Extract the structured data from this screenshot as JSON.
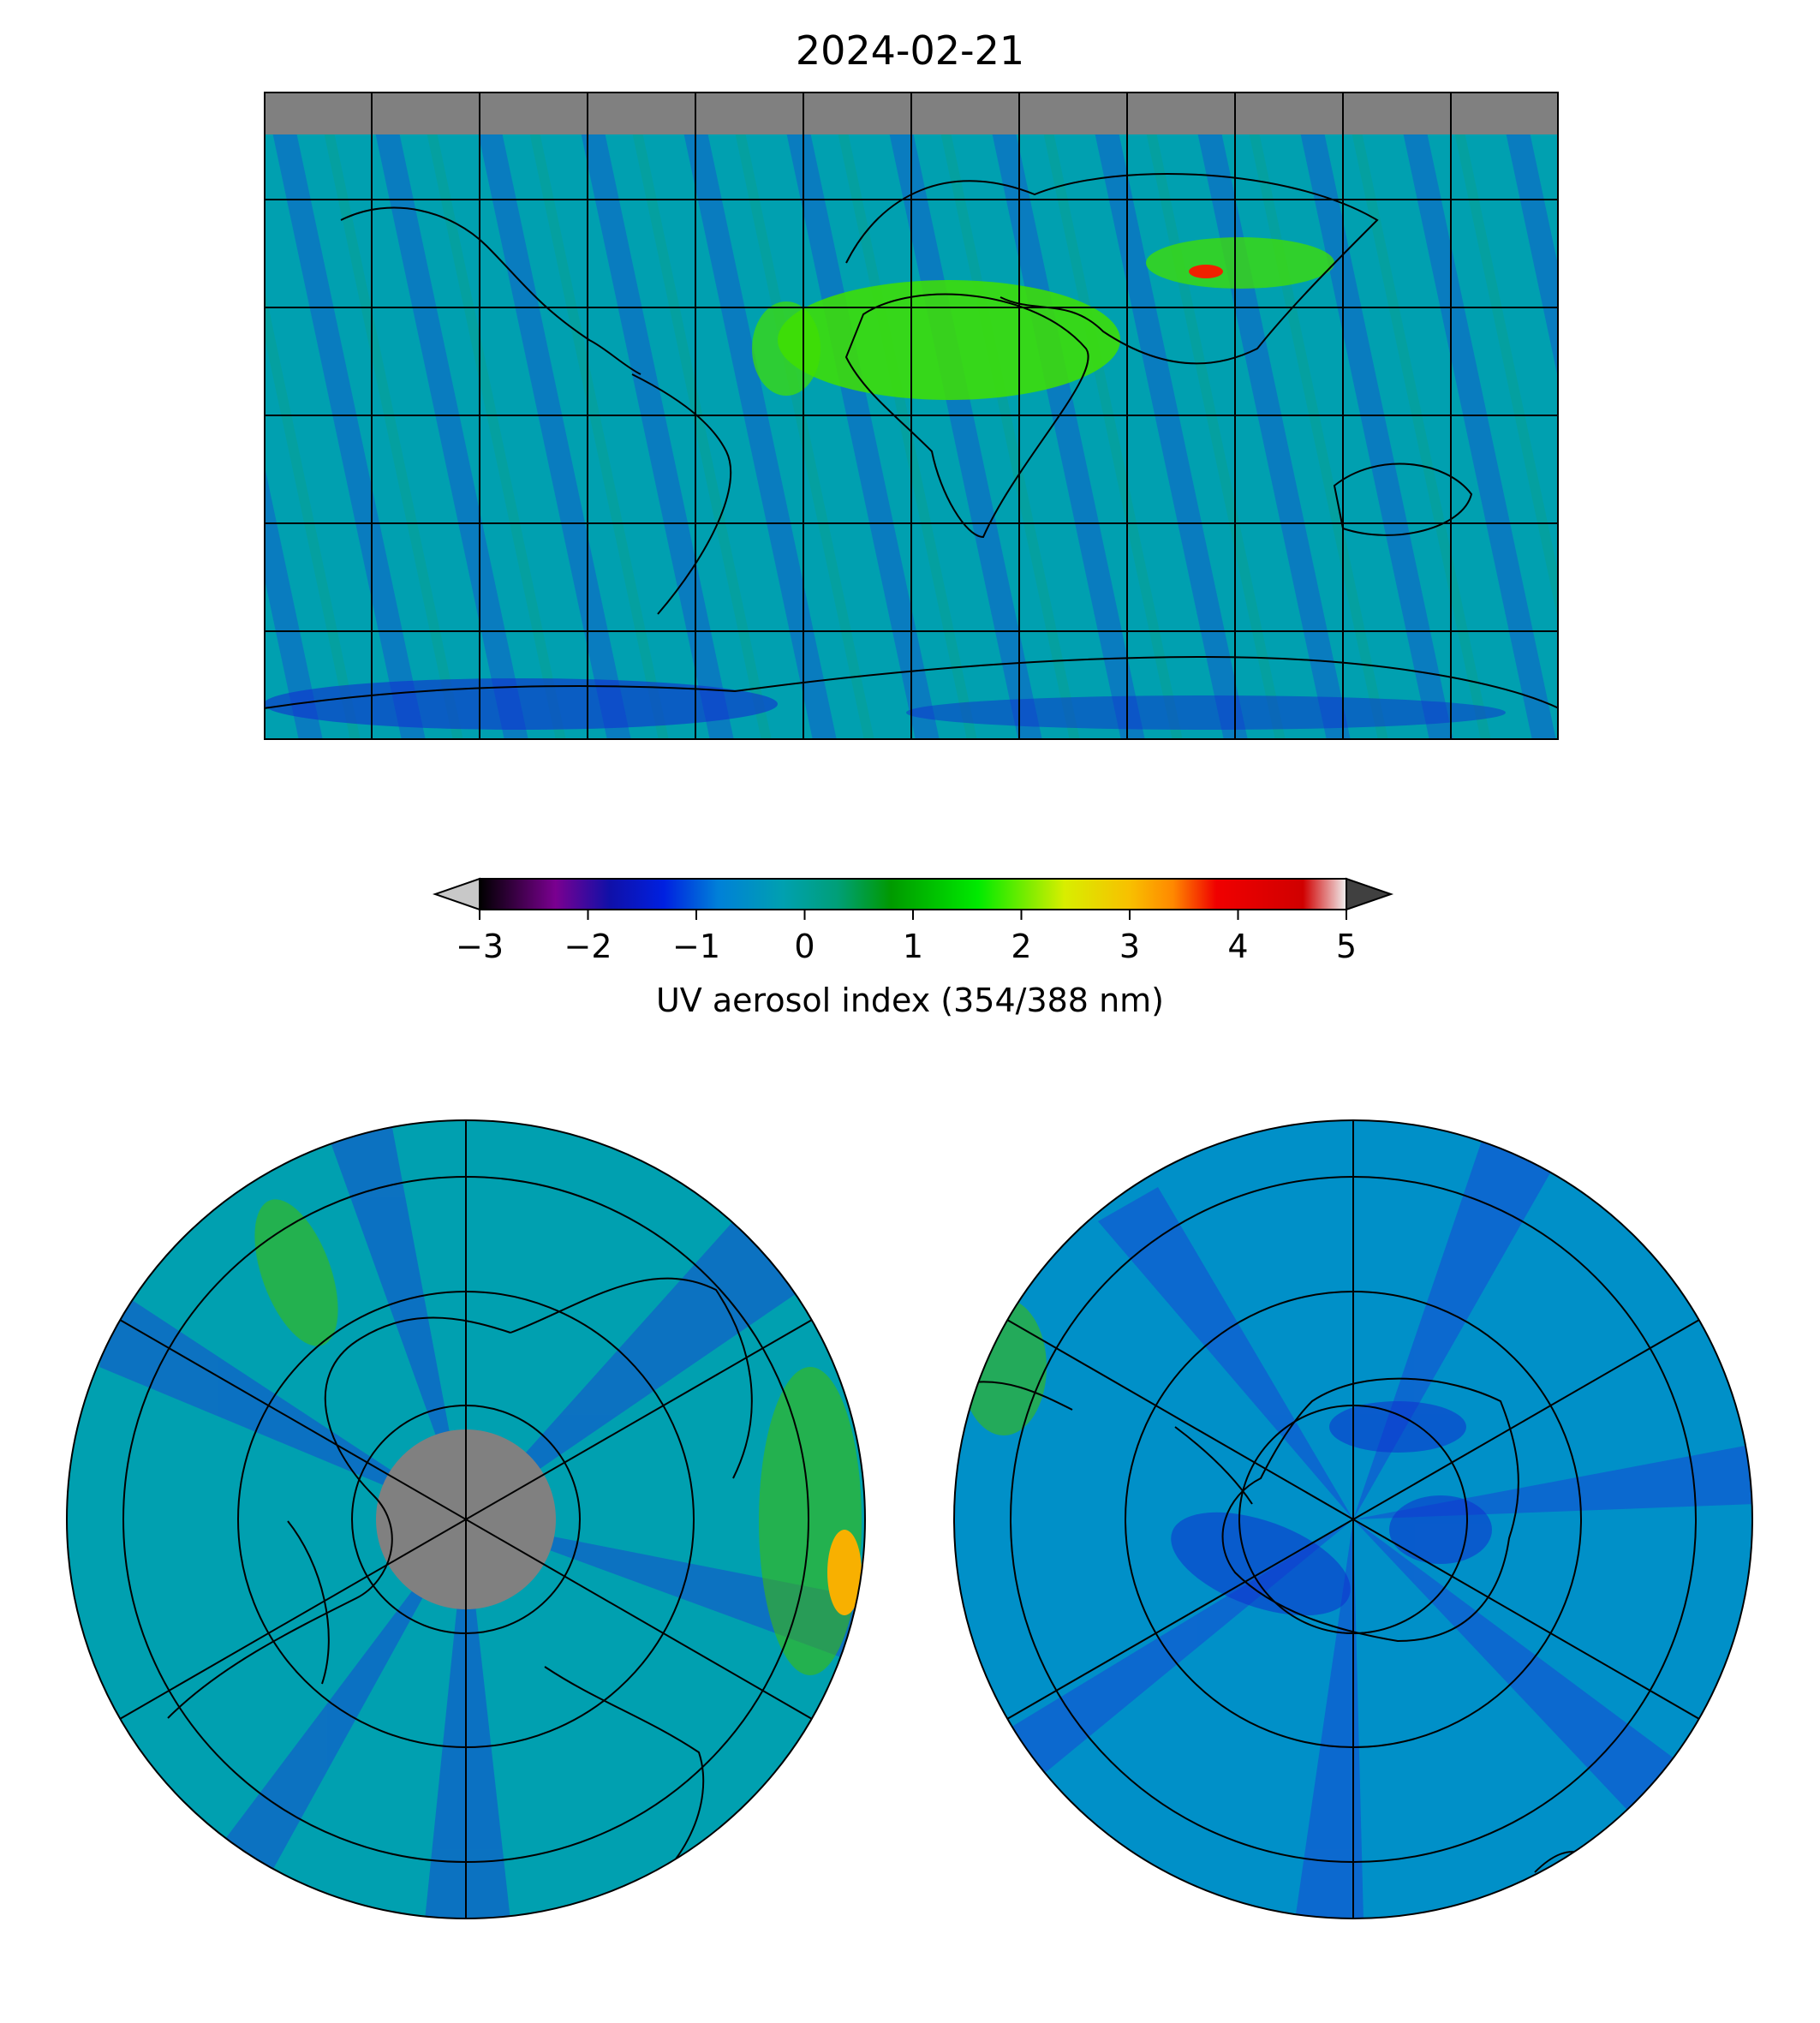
{
  "title": "2024-02-21",
  "colorbar": {
    "label": "UV aerosol index (354/388 nm)",
    "min": -3,
    "max": 5,
    "ticks": [
      "−3",
      "−2",
      "−1",
      "0",
      "1",
      "2",
      "3",
      "4",
      "5"
    ],
    "extend": "both",
    "under_color": "#c8c8c8",
    "over_color": "#404040",
    "stops": [
      {
        "v": -3.0,
        "c": "#000000"
      },
      {
        "v": -2.3,
        "c": "#7a0090"
      },
      {
        "v": -1.8,
        "c": "#1010a8"
      },
      {
        "v": -1.3,
        "c": "#0020e0"
      },
      {
        "v": -0.8,
        "c": "#0080d8"
      },
      {
        "v": -0.2,
        "c": "#00a0b0"
      },
      {
        "v": 0.3,
        "c": "#009f78"
      },
      {
        "v": 0.8,
        "c": "#009a00"
      },
      {
        "v": 1.6,
        "c": "#00ea00"
      },
      {
        "v": 2.4,
        "c": "#d8ee00"
      },
      {
        "v": 3.0,
        "c": "#f8c000"
      },
      {
        "v": 3.4,
        "c": "#ff8800"
      },
      {
        "v": 3.8,
        "c": "#f00000"
      },
      {
        "v": 4.6,
        "c": "#d00000"
      },
      {
        "v": 5.0,
        "c": "#f0f0f0"
      }
    ]
  },
  "maps": {
    "world": {
      "projection": "plate-carree",
      "lon_range": [
        -180,
        180
      ],
      "lat_range": [
        -90,
        90
      ],
      "gridlines_lon_step": 30,
      "gridlines_lat_step": 30,
      "no_data_color": "#808080",
      "ocean_base_color": "#00a0b0"
    },
    "north_polar": {
      "projection": "north polar stereographic",
      "no_data_color": "#808080"
    },
    "south_polar": {
      "projection": "south polar stereographic"
    }
  },
  "colors": {
    "grid_line": "#000000",
    "coastline": "#000000",
    "land_desert": "#40e000",
    "land_blue_streak": "#1030d0"
  }
}
